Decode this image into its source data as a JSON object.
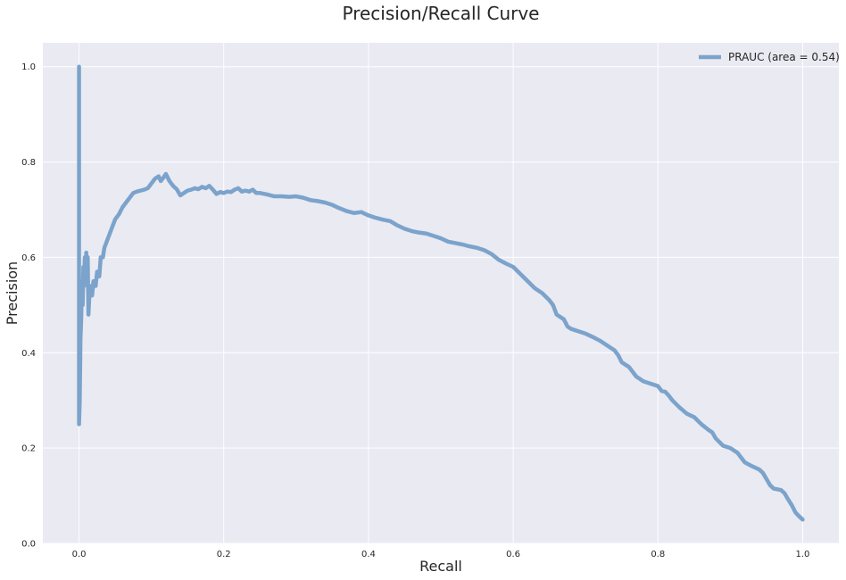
{
  "chart_data": {
    "type": "line",
    "title": "Precision/Recall Curve",
    "xlabel": "Recall",
    "ylabel": "Precision",
    "xlim": [
      -0.05,
      1.05
    ],
    "ylim": [
      0.0,
      1.05
    ],
    "x_ticks": [
      0.0,
      0.2,
      0.4,
      0.6,
      0.8,
      1.0
    ],
    "y_ticks": [
      0.0,
      0.2,
      0.4,
      0.6,
      0.8,
      1.0
    ],
    "x_tick_labels": [
      "0.0",
      "0.2",
      "0.4",
      "0.6",
      "0.8",
      "1.0"
    ],
    "y_tick_labels": [
      "0.0",
      "0.2",
      "0.4",
      "0.6",
      "0.8",
      "1.0"
    ],
    "grid": true,
    "legend_position": "top-right",
    "background_color": "#eaeaf2",
    "grid_color": "#ffffff",
    "series": [
      {
        "name": "PRAUC (area = 0.54)",
        "color": "#7ba3cb",
        "points": [
          [
            0.0,
            1.0
          ],
          [
            0.0,
            0.25
          ],
          [
            0.001,
            0.3
          ],
          [
            0.002,
            0.43
          ],
          [
            0.003,
            0.47
          ],
          [
            0.004,
            0.55
          ],
          [
            0.005,
            0.5
          ],
          [
            0.006,
            0.58
          ],
          [
            0.007,
            0.54
          ],
          [
            0.008,
            0.6
          ],
          [
            0.009,
            0.55
          ],
          [
            0.01,
            0.61
          ],
          [
            0.011,
            0.56
          ],
          [
            0.012,
            0.6
          ],
          [
            0.013,
            0.48
          ],
          [
            0.015,
            0.54
          ],
          [
            0.018,
            0.52
          ],
          [
            0.02,
            0.55
          ],
          [
            0.023,
            0.54
          ],
          [
            0.025,
            0.57
          ],
          [
            0.028,
            0.56
          ],
          [
            0.03,
            0.6
          ],
          [
            0.033,
            0.6
          ],
          [
            0.035,
            0.62
          ],
          [
            0.04,
            0.64
          ],
          [
            0.045,
            0.66
          ],
          [
            0.05,
            0.68
          ],
          [
            0.055,
            0.69
          ],
          [
            0.06,
            0.705
          ],
          [
            0.065,
            0.715
          ],
          [
            0.07,
            0.725
          ],
          [
            0.075,
            0.735
          ],
          [
            0.08,
            0.738
          ],
          [
            0.085,
            0.74
          ],
          [
            0.09,
            0.742
          ],
          [
            0.095,
            0.745
          ],
          [
            0.1,
            0.755
          ],
          [
            0.105,
            0.765
          ],
          [
            0.11,
            0.77
          ],
          [
            0.113,
            0.76
          ],
          [
            0.117,
            0.768
          ],
          [
            0.12,
            0.775
          ],
          [
            0.125,
            0.76
          ],
          [
            0.13,
            0.75
          ],
          [
            0.135,
            0.743
          ],
          [
            0.14,
            0.73
          ],
          [
            0.145,
            0.735
          ],
          [
            0.15,
            0.74
          ],
          [
            0.155,
            0.742
          ],
          [
            0.16,
            0.745
          ],
          [
            0.165,
            0.743
          ],
          [
            0.17,
            0.748
          ],
          [
            0.175,
            0.745
          ],
          [
            0.18,
            0.75
          ],
          [
            0.185,
            0.742
          ],
          [
            0.19,
            0.733
          ],
          [
            0.195,
            0.737
          ],
          [
            0.2,
            0.735
          ],
          [
            0.205,
            0.738
          ],
          [
            0.21,
            0.737
          ],
          [
            0.215,
            0.742
          ],
          [
            0.22,
            0.745
          ],
          [
            0.225,
            0.738
          ],
          [
            0.23,
            0.74
          ],
          [
            0.235,
            0.738
          ],
          [
            0.24,
            0.742
          ],
          [
            0.245,
            0.735
          ],
          [
            0.25,
            0.735
          ],
          [
            0.26,
            0.732
          ],
          [
            0.27,
            0.728
          ],
          [
            0.28,
            0.728
          ],
          [
            0.29,
            0.727
          ],
          [
            0.3,
            0.728
          ],
          [
            0.31,
            0.725
          ],
          [
            0.32,
            0.72
          ],
          [
            0.33,
            0.718
          ],
          [
            0.34,
            0.715
          ],
          [
            0.35,
            0.71
          ],
          [
            0.36,
            0.703
          ],
          [
            0.37,
            0.697
          ],
          [
            0.38,
            0.693
          ],
          [
            0.39,
            0.695
          ],
          [
            0.4,
            0.688
          ],
          [
            0.41,
            0.683
          ],
          [
            0.42,
            0.679
          ],
          [
            0.43,
            0.676
          ],
          [
            0.44,
            0.667
          ],
          [
            0.45,
            0.66
          ],
          [
            0.46,
            0.655
          ],
          [
            0.47,
            0.652
          ],
          [
            0.48,
            0.65
          ],
          [
            0.49,
            0.645
          ],
          [
            0.5,
            0.64
          ],
          [
            0.51,
            0.633
          ],
          [
            0.52,
            0.63
          ],
          [
            0.53,
            0.627
          ],
          [
            0.54,
            0.623
          ],
          [
            0.55,
            0.62
          ],
          [
            0.56,
            0.615
          ],
          [
            0.57,
            0.607
          ],
          [
            0.58,
            0.595
          ],
          [
            0.59,
            0.587
          ],
          [
            0.6,
            0.58
          ],
          [
            0.61,
            0.565
          ],
          [
            0.62,
            0.55
          ],
          [
            0.63,
            0.535
          ],
          [
            0.64,
            0.525
          ],
          [
            0.65,
            0.51
          ],
          [
            0.655,
            0.5
          ],
          [
            0.66,
            0.48
          ],
          [
            0.67,
            0.47
          ],
          [
            0.675,
            0.455
          ],
          [
            0.68,
            0.45
          ],
          [
            0.69,
            0.445
          ],
          [
            0.7,
            0.44
          ],
          [
            0.71,
            0.433
          ],
          [
            0.72,
            0.425
          ],
          [
            0.73,
            0.415
          ],
          [
            0.74,
            0.405
          ],
          [
            0.745,
            0.395
          ],
          [
            0.75,
            0.38
          ],
          [
            0.76,
            0.37
          ],
          [
            0.765,
            0.36
          ],
          [
            0.77,
            0.35
          ],
          [
            0.78,
            0.34
          ],
          [
            0.79,
            0.335
          ],
          [
            0.8,
            0.33
          ],
          [
            0.805,
            0.32
          ],
          [
            0.81,
            0.318
          ],
          [
            0.815,
            0.31
          ],
          [
            0.82,
            0.3
          ],
          [
            0.83,
            0.285
          ],
          [
            0.84,
            0.272
          ],
          [
            0.85,
            0.265
          ],
          [
            0.86,
            0.25
          ],
          [
            0.87,
            0.238
          ],
          [
            0.875,
            0.233
          ],
          [
            0.88,
            0.22
          ],
          [
            0.89,
            0.205
          ],
          [
            0.9,
            0.2
          ],
          [
            0.91,
            0.19
          ],
          [
            0.915,
            0.18
          ],
          [
            0.92,
            0.17
          ],
          [
            0.93,
            0.162
          ],
          [
            0.94,
            0.155
          ],
          [
            0.945,
            0.148
          ],
          [
            0.95,
            0.135
          ],
          [
            0.955,
            0.122
          ],
          [
            0.96,
            0.115
          ],
          [
            0.97,
            0.112
          ],
          [
            0.975,
            0.105
          ],
          [
            0.98,
            0.092
          ],
          [
            0.985,
            0.08
          ],
          [
            0.99,
            0.065
          ],
          [
            0.995,
            0.057
          ],
          [
            1.0,
            0.05
          ]
        ]
      }
    ]
  }
}
